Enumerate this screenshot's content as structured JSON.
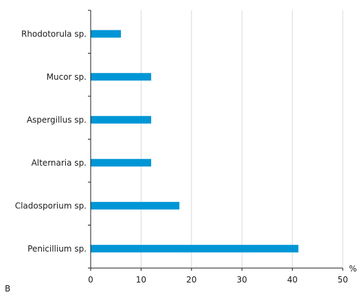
{
  "panel_label": "B",
  "chart_data": {
    "type": "bar",
    "orientation": "horizontal",
    "categories": [
      "Rhodotorula sp.",
      "Mucor sp.",
      "Aspergillus sp.",
      "Alternaria sp.",
      "Cladosporium sp.",
      "Penicillium sp."
    ],
    "values": [
      6,
      12,
      12,
      12,
      17.6,
      41.2
    ],
    "xlabel": "%",
    "ylabel": "",
    "xlim": [
      0,
      50
    ],
    "xticks": [
      0,
      10,
      20,
      30,
      40,
      50
    ],
    "grid": "vertical",
    "bar_color": "#0096d6",
    "grid_color": "#d9d9d9"
  }
}
